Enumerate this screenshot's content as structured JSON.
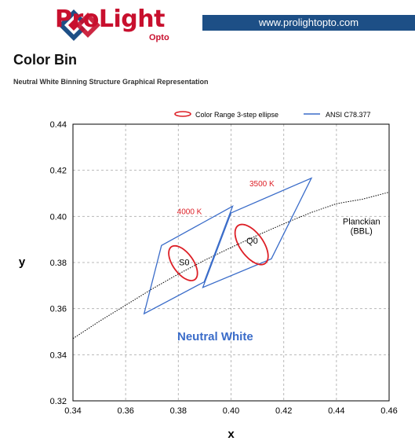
{
  "header": {
    "brand": "ProLight",
    "brand_sub": "Opto",
    "website": "www.prolightopto.com",
    "colors": {
      "brand_red": "#c8102e",
      "bar_blue": "#1d4f86"
    }
  },
  "page": {
    "title": "Color Bin",
    "subtitle": "Neutral White Binning Structure Graphical Representation"
  },
  "chart_data": {
    "type": "scatter",
    "xlabel": "x",
    "ylabel": "y",
    "xlim": [
      0.34,
      0.46
    ],
    "ylim": [
      0.32,
      0.44
    ],
    "xticks": [
      "0.34",
      "0.36",
      "0.38",
      "0.40",
      "0.42",
      "0.44",
      "0.46"
    ],
    "yticks": [
      "0.32",
      "0.34",
      "0.36",
      "0.38",
      "0.40",
      "0.42",
      "0.44"
    ],
    "grid": true,
    "legend": {
      "position": "top-right",
      "entries": [
        {
          "name": "Color Range 3-step ellipse",
          "color": "#dd1f26"
        },
        {
          "name": "ANSI C78.377",
          "color": "#3a6cc9"
        }
      ]
    },
    "ansi_quads": [
      {
        "name": "4000 K",
        "color": "#3a6cc9",
        "points": [
          [
            0.3736,
            0.3874
          ],
          [
            0.4006,
            0.4044
          ],
          [
            0.3898,
            0.3716
          ],
          [
            0.367,
            0.3578
          ]
        ]
      },
      {
        "name": "3500 K",
        "color": "#3a6cc9",
        "points": [
          [
            0.4,
            0.4015
          ],
          [
            0.4305,
            0.4166
          ],
          [
            0.4153,
            0.3816
          ],
          [
            0.3893,
            0.3692
          ]
        ]
      }
    ],
    "ellipses": [
      {
        "label": "S0",
        "center": [
          0.3818,
          0.3797
        ],
        "semi_major": 0.0084,
        "semi_minor": 0.004,
        "rotation_deg": -60,
        "color": "#dd1f26"
      },
      {
        "label": "Q0",
        "center": [
          0.4078,
          0.3878
        ],
        "semi_major": 0.0097,
        "semi_minor": 0.0046,
        "rotation_deg": -60,
        "color": "#dd1f26"
      }
    ],
    "planckian": {
      "label": "Planckian (BBL)",
      "points": [
        [
          0.34,
          0.347
        ],
        [
          0.35,
          0.3545
        ],
        [
          0.36,
          0.3615
        ],
        [
          0.37,
          0.3685
        ],
        [
          0.38,
          0.375
        ],
        [
          0.39,
          0.381
        ],
        [
          0.4,
          0.3865
        ],
        [
          0.41,
          0.3918
        ],
        [
          0.42,
          0.3968
        ],
        [
          0.43,
          0.4015
        ],
        [
          0.44,
          0.4055
        ],
        [
          0.45,
          0.4075
        ],
        [
          0.46,
          0.4105
        ]
      ]
    },
    "annotations": {
      "t4000": "4000 K",
      "t3500": "3500 K",
      "planck_line1": "Planckian",
      "planck_line2": "(BBL)",
      "region": "Neutral White"
    },
    "annotation_colors": {
      "cct": "#dd1f26",
      "region": "#3a6cc9"
    }
  }
}
